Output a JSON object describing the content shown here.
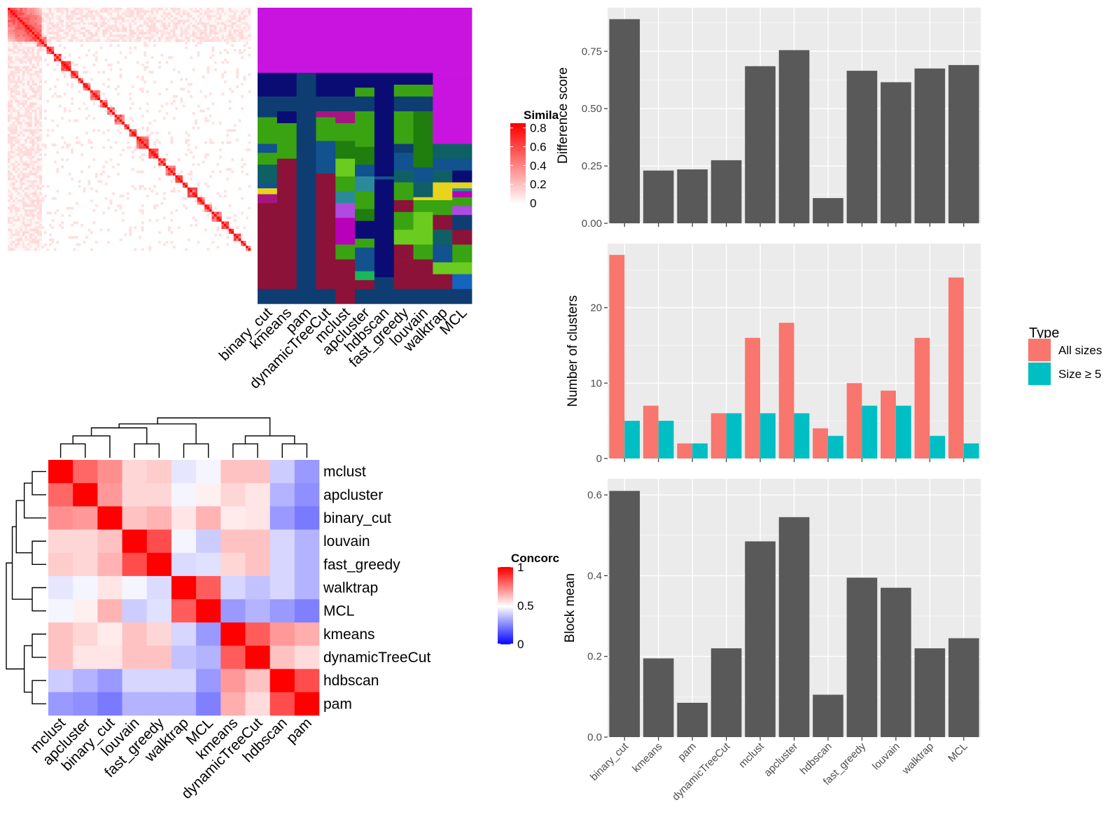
{
  "colors": {
    "panel_bg": "#EBEBEB",
    "grid_major": "#FFFFFF",
    "bar_fill": "#595959",
    "series_all_sizes": "#F8766D",
    "series_size_ge5": "#00BFC4",
    "heat_high": "#FF0000",
    "heat_mid": "#FFFFFF",
    "heat_low": "#0000FF",
    "assign_palette": [
      "#C914E0",
      "#0A0C73",
      "#0E3D72",
      "#12528F",
      "#3AA312",
      "#1F7E0E",
      "#8C1239",
      "#6BCB1E",
      "#0E6065",
      "#B800B8",
      "#E8D41C",
      "#A71580",
      "#2A8A9A",
      "#1565C0",
      "#B04AE0",
      "#16B85A"
    ]
  },
  "chart_data": [
    {
      "type": "heatmap",
      "id": "similarity_matrix",
      "legend_title": "Similarity",
      "legend_title_visible": "Simila",
      "legend_ticks": [
        "0.8",
        "0.6",
        "0.4",
        "0.2",
        "0"
      ],
      "legend_range": [
        0,
        0.85
      ],
      "n_cells": 100,
      "block_sizes": [
        6,
        3,
        3,
        4,
        3,
        3,
        4,
        3,
        2,
        3,
        4,
        3,
        3,
        4,
        2,
        3,
        5,
        4,
        3,
        4,
        3,
        2,
        4,
        3,
        3,
        4,
        3,
        2,
        3,
        2
      ],
      "diagonal_value": 0.85,
      "top_cluster_value": 0.75
    },
    {
      "type": "heatmap",
      "id": "cluster_assignments",
      "columns": [
        "binary_cut",
        "kmeans",
        "pam",
        "dynamicTreeCut",
        "mclust",
        "apcluster",
        "hdbscan",
        "fast_greedy",
        "louvain",
        "walktrap",
        "MCL"
      ],
      "column_segments": [
        [
          [
            0,
            22,
            0
          ],
          [
            22,
            30,
            1
          ],
          [
            30,
            37,
            2
          ],
          [
            37,
            46,
            4
          ],
          [
            46,
            49,
            3
          ],
          [
            49,
            53,
            4
          ],
          [
            53,
            59,
            8
          ],
          [
            59,
            61,
            3
          ],
          [
            61,
            63,
            10
          ],
          [
            63,
            66,
            11
          ],
          [
            66,
            88,
            6
          ],
          [
            88,
            95,
            6
          ],
          [
            95,
            100,
            2
          ]
        ],
        [
          [
            0,
            22,
            0
          ],
          [
            22,
            30,
            1
          ],
          [
            30,
            35,
            2
          ],
          [
            35,
            39,
            1
          ],
          [
            39,
            47,
            4
          ],
          [
            47,
            51,
            4
          ],
          [
            51,
            59,
            6
          ],
          [
            59,
            65,
            6
          ],
          [
            65,
            88,
            6
          ],
          [
            88,
            95,
            6
          ],
          [
            95,
            100,
            2
          ]
        ],
        [
          [
            0,
            22,
            0
          ],
          [
            22,
            95,
            2
          ],
          [
            95,
            100,
            2
          ]
        ],
        [
          [
            0,
            22,
            0
          ],
          [
            22,
            30,
            1
          ],
          [
            30,
            35,
            2
          ],
          [
            35,
            37,
            11
          ],
          [
            37,
            45,
            4
          ],
          [
            45,
            51,
            3
          ],
          [
            51,
            56,
            3
          ],
          [
            56,
            88,
            6
          ],
          [
            88,
            95,
            6
          ],
          [
            95,
            100,
            2
          ]
        ],
        [
          [
            0,
            22,
            0
          ],
          [
            22,
            30,
            1
          ],
          [
            30,
            35,
            2
          ],
          [
            35,
            39,
            11
          ],
          [
            39,
            45,
            4
          ],
          [
            45,
            51,
            5
          ],
          [
            51,
            57,
            7
          ],
          [
            57,
            62,
            4
          ],
          [
            62,
            66,
            12
          ],
          [
            66,
            71,
            14
          ],
          [
            71,
            80,
            9
          ],
          [
            80,
            85,
            4
          ],
          [
            85,
            88,
            6
          ],
          [
            88,
            95,
            6
          ],
          [
            95,
            100,
            6
          ]
        ],
        [
          [
            0,
            22,
            0
          ],
          [
            22,
            27,
            1
          ],
          [
            27,
            30,
            4
          ],
          [
            30,
            35,
            2
          ],
          [
            35,
            47,
            4
          ],
          [
            47,
            53,
            5
          ],
          [
            53,
            57,
            3
          ],
          [
            57,
            62,
            12
          ],
          [
            62,
            68,
            4
          ],
          [
            68,
            72,
            5
          ],
          [
            72,
            78,
            1
          ],
          [
            78,
            81,
            4
          ],
          [
            81,
            85,
            3
          ],
          [
            85,
            89,
            3
          ],
          [
            89,
            92,
            15
          ],
          [
            92,
            95,
            6
          ],
          [
            95,
            100,
            2
          ]
        ],
        [
          [
            0,
            22,
            0
          ],
          [
            22,
            57,
            1
          ],
          [
            57,
            58,
            3
          ],
          [
            58,
            91,
            1
          ],
          [
            91,
            93,
            2
          ],
          [
            93,
            100,
            2
          ]
        ],
        [
          [
            0,
            22,
            0
          ],
          [
            22,
            26,
            1
          ],
          [
            26,
            30,
            4
          ],
          [
            30,
            35,
            2
          ],
          [
            35,
            46,
            4
          ],
          [
            46,
            49,
            2
          ],
          [
            49,
            55,
            3
          ],
          [
            55,
            59,
            8
          ],
          [
            59,
            65,
            4
          ],
          [
            65,
            69,
            6
          ],
          [
            69,
            75,
            4
          ],
          [
            75,
            80,
            7
          ],
          [
            80,
            85,
            6
          ],
          [
            85,
            88,
            6
          ],
          [
            88,
            95,
            6
          ],
          [
            95,
            100,
            2
          ]
        ],
        [
          [
            0,
            22,
            0
          ],
          [
            22,
            26,
            1
          ],
          [
            26,
            30,
            4
          ],
          [
            30,
            35,
            2
          ],
          [
            35,
            46,
            5
          ],
          [
            46,
            54,
            5
          ],
          [
            54,
            59,
            3
          ],
          [
            59,
            64,
            8
          ],
          [
            64,
            65,
            10
          ],
          [
            65,
            69,
            4
          ],
          [
            69,
            80,
            7
          ],
          [
            80,
            85,
            4
          ],
          [
            85,
            88,
            6
          ],
          [
            88,
            95,
            6
          ],
          [
            95,
            100,
            2
          ]
        ],
        [
          [
            0,
            22,
            0
          ],
          [
            22,
            46,
            0
          ],
          [
            46,
            51,
            8
          ],
          [
            51,
            55,
            3
          ],
          [
            55,
            59,
            8
          ],
          [
            59,
            65,
            10
          ],
          [
            65,
            70,
            4
          ],
          [
            70,
            75,
            6
          ],
          [
            75,
            80,
            8
          ],
          [
            80,
            86,
            3
          ],
          [
            86,
            90,
            7
          ],
          [
            90,
            95,
            6
          ],
          [
            95,
            100,
            2
          ]
        ],
        [
          [
            0,
            22,
            0
          ],
          [
            22,
            46,
            0
          ],
          [
            46,
            51,
            8
          ],
          [
            51,
            55,
            3
          ],
          [
            55,
            59,
            1
          ],
          [
            59,
            61,
            10
          ],
          [
            61,
            62,
            12
          ],
          [
            62,
            64,
            9
          ],
          [
            64,
            67,
            4
          ],
          [
            67,
            70,
            14
          ],
          [
            70,
            75,
            2
          ],
          [
            75,
            80,
            6
          ],
          [
            80,
            86,
            4
          ],
          [
            86,
            90,
            7
          ],
          [
            90,
            95,
            13
          ],
          [
            95,
            100,
            2
          ]
        ]
      ]
    },
    {
      "type": "heatmap",
      "id": "concordance",
      "legend_title": "Concordance",
      "legend_title_visible": "Concorc",
      "legend_ticks": [
        "1",
        "0.5",
        "0"
      ],
      "rows": [
        "mclust",
        "apcluster",
        "binary_cut",
        "louvain",
        "fast_greedy",
        "walktrap",
        "MCL",
        "kmeans",
        "dynamicTreeCut",
        "hdbscan",
        "pam"
      ],
      "columns": [
        "mclust",
        "apcluster",
        "binary_cut",
        "louvain",
        "fast_greedy",
        "walktrap",
        "MCL",
        "kmeans",
        "dynamicTreeCut",
        "hdbscan",
        "pam"
      ],
      "values": [
        [
          1.0,
          0.8,
          0.72,
          0.58,
          0.6,
          0.45,
          0.48,
          0.62,
          0.62,
          0.4,
          0.3
        ],
        [
          0.8,
          1.0,
          0.7,
          0.58,
          0.58,
          0.48,
          0.53,
          0.58,
          0.55,
          0.35,
          0.28
        ],
        [
          0.72,
          0.7,
          1.0,
          0.62,
          0.65,
          0.55,
          0.65,
          0.54,
          0.55,
          0.3,
          0.24
        ],
        [
          0.58,
          0.58,
          0.62,
          1.0,
          0.85,
          0.48,
          0.4,
          0.62,
          0.62,
          0.42,
          0.35
        ],
        [
          0.6,
          0.58,
          0.65,
          0.85,
          1.0,
          0.43,
          0.44,
          0.58,
          0.62,
          0.42,
          0.35
        ],
        [
          0.45,
          0.48,
          0.55,
          0.48,
          0.43,
          1.0,
          0.82,
          0.42,
          0.38,
          0.42,
          0.35
        ],
        [
          0.48,
          0.53,
          0.65,
          0.4,
          0.44,
          0.82,
          1.0,
          0.3,
          0.35,
          0.3,
          0.25
        ],
        [
          0.62,
          0.58,
          0.54,
          0.62,
          0.58,
          0.42,
          0.3,
          1.0,
          0.82,
          0.7,
          0.66
        ],
        [
          0.62,
          0.55,
          0.55,
          0.62,
          0.62,
          0.38,
          0.35,
          0.82,
          1.0,
          0.62,
          0.57
        ],
        [
          0.4,
          0.35,
          0.3,
          0.42,
          0.42,
          0.42,
          0.3,
          0.7,
          0.62,
          1.0,
          0.85
        ],
        [
          0.3,
          0.28,
          0.24,
          0.35,
          0.35,
          0.35,
          0.25,
          0.66,
          0.57,
          0.85,
          1.0
        ]
      ],
      "dendrogram_merges": [
        [
          -1,
          -2,
          0.35
        ],
        [
          1,
          -3,
          0.55
        ],
        [
          -4,
          -5,
          0.35
        ],
        [
          2,
          3,
          0.75
        ],
        [
          -6,
          -7,
          0.35
        ],
        [
          4,
          5,
          0.85
        ],
        [
          -8,
          -9,
          0.35
        ],
        [
          -10,
          -11,
          0.35
        ],
        [
          7,
          8,
          0.55
        ],
        [
          6,
          9,
          1.0
        ]
      ]
    },
    {
      "type": "bar",
      "id": "difference_score",
      "categories": [
        "binary_cut",
        "kmeans",
        "pam",
        "dynamicTreeCut",
        "mclust",
        "apcluster",
        "hdbscan",
        "fast_greedy",
        "louvain",
        "walktrap",
        "MCL"
      ],
      "values": [
        0.89,
        0.23,
        0.235,
        0.275,
        0.685,
        0.755,
        0.11,
        0.665,
        0.615,
        0.675,
        0.69
      ],
      "ylabel": "Difference score",
      "ylim": [
        0,
        0.94
      ],
      "yticks": [
        "0.00",
        "0.25",
        "0.50",
        "0.75"
      ],
      "grid": true
    },
    {
      "type": "bar",
      "id": "number_of_clusters",
      "categories": [
        "binary_cut",
        "kmeans",
        "pam",
        "dynamicTreeCut",
        "mclust",
        "apcluster",
        "hdbscan",
        "fast_greedy",
        "louvain",
        "walktrap",
        "MCL"
      ],
      "series": [
        {
          "name": "All sizes",
          "values": [
            27,
            7,
            2,
            6,
            16,
            18,
            4,
            10,
            9,
            16,
            24
          ]
        },
        {
          "name": "Size ≥ 5",
          "values": [
            5,
            5,
            2,
            6,
            6,
            6,
            3,
            7,
            7,
            3,
            2
          ]
        }
      ],
      "ylabel": "Number of clusters",
      "ylim": [
        0,
        28.5
      ],
      "yticks": [
        "0",
        "10",
        "20"
      ],
      "legend_title": "Type",
      "legend_position": "right",
      "grid": true
    },
    {
      "type": "bar",
      "id": "block_mean",
      "categories": [
        "binary_cut",
        "kmeans",
        "pam",
        "dynamicTreeCut",
        "mclust",
        "apcluster",
        "hdbscan",
        "fast_greedy",
        "louvain",
        "walktrap",
        "MCL"
      ],
      "values": [
        0.61,
        0.195,
        0.085,
        0.22,
        0.485,
        0.545,
        0.105,
        0.395,
        0.37,
        0.22,
        0.245
      ],
      "ylabel": "Block mean",
      "ylim": [
        0,
        0.64
      ],
      "yticks": [
        "0.0",
        "0.2",
        "0.4",
        "0.6"
      ],
      "grid": true
    }
  ]
}
